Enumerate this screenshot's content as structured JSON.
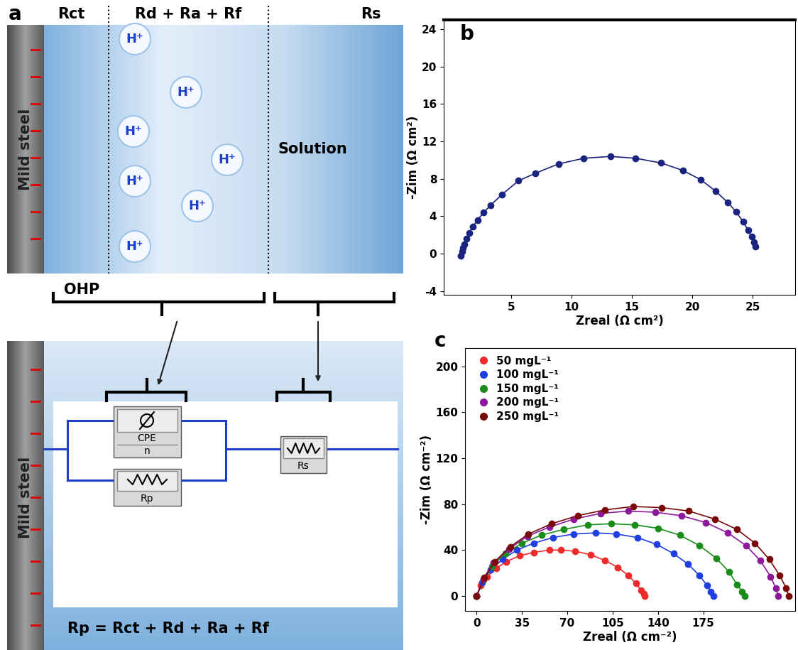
{
  "diagram": {
    "panel_label": "a",
    "header": {
      "left": "Rct",
      "middle": "Rd + Ra + Rf",
      "right": "Rs"
    },
    "electrode": "Mild steel",
    "ions": [
      "H⁺",
      "H⁺",
      "H⁺",
      "H⁺",
      "H⁺",
      "H⁺",
      "H⁺"
    ],
    "solution": "Solution",
    "layer": "OHP",
    "circuit": {
      "cpe": "CPE",
      "cpe_exponent": "n",
      "rp": "Rp",
      "rs": "Rs"
    },
    "equation": "Rp = Rct + Rd + Ra + Rf"
  },
  "chart_data": [
    {
      "type": "line",
      "panel_label": "b",
      "x_label": "Zreal (Ω cm²)",
      "y_label": "-Zim (Ω cm²)",
      "xlim": [
        -0.6,
        28.5
      ],
      "ylim": [
        -4.4,
        25
      ],
      "xticks": [
        5,
        10,
        15,
        20,
        25
      ],
      "yticks": [
        -4,
        0,
        4,
        8,
        12,
        16,
        20,
        24
      ],
      "series": [
        {
          "color": "#1a237e",
          "marker": "o",
          "line_style": "solid",
          "x": [
            0.8,
            0.9,
            1.0,
            1.1,
            1.3,
            1.5,
            1.8,
            2.2,
            2.7,
            3.3,
            4.2,
            5.6,
            7.0,
            8.9,
            11.0,
            13.2,
            15.3,
            17.4,
            19.2,
            20.7,
            21.9,
            22.9,
            23.6,
            24.2,
            24.6,
            24.9,
            25.1,
            25.2
          ],
          "values": [
            -0.2,
            0.2,
            0.6,
            1.0,
            1.6,
            2.2,
            2.9,
            3.6,
            4.4,
            5.2,
            6.3,
            7.8,
            8.6,
            9.6,
            10.2,
            10.4,
            10.2,
            9.7,
            8.9,
            7.9,
            6.7,
            5.5,
            4.5,
            3.4,
            2.5,
            1.8,
            1.2,
            0.8
          ]
        }
      ]
    },
    {
      "type": "line",
      "panel_label": "c",
      "x_label": "Zreal (Ω cm⁻²)",
      "y_label": "-Zim (Ω cm⁻²)",
      "xlim": [
        -9,
        246
      ],
      "ylim": [
        -13,
        216
      ],
      "xticks": [
        0,
        35,
        70,
        105,
        140,
        175
      ],
      "yticks": [
        0,
        40,
        80,
        120,
        160,
        200
      ],
      "legend": "upper left",
      "series": [
        {
          "name": "50 mgL⁻¹",
          "color": "#ee2b2b",
          "marker": "o",
          "line_style": "solid",
          "x": [
            0,
            3,
            8,
            15,
            23,
            33,
            44,
            56,
            65,
            76,
            88,
            99,
            109,
            117,
            123,
            127,
            129,
            130
          ],
          "values": [
            0,
            9,
            17,
            24,
            30,
            35,
            38,
            40,
            40,
            39,
            36,
            31,
            25,
            18,
            11,
            5,
            2,
            0
          ]
        },
        {
          "name": "100 mgL⁻¹",
          "color": "#1f3fe0",
          "marker": "o",
          "line_style": "solid",
          "x": [
            0,
            4,
            11,
            20,
            31,
            44,
            59,
            75,
            92,
            108,
            124,
            139,
            152,
            163,
            172,
            178,
            181,
            183
          ],
          "values": [
            0,
            12,
            23,
            32,
            40,
            46,
            51,
            54,
            55,
            54,
            51,
            45,
            37,
            28,
            18,
            9,
            4,
            0
          ]
        },
        {
          "name": "150 mgL⁻¹",
          "color": "#1a8c1a",
          "marker": "o",
          "line_style": "solid",
          "x": [
            0,
            5,
            12,
            22,
            35,
            50,
            67,
            86,
            104,
            122,
            140,
            157,
            172,
            185,
            195,
            201,
            205,
            207
          ],
          "values": [
            0,
            14,
            26,
            37,
            46,
            53,
            58,
            62,
            63,
            62,
            59,
            53,
            44,
            33,
            21,
            10,
            4,
            0
          ]
        },
        {
          "name": "200 mgL⁻¹",
          "color": "#8b1a9b",
          "marker": "o",
          "line_style": "solid",
          "x": [
            0,
            5,
            13,
            25,
            39,
            56,
            75,
            96,
            117,
            138,
            158,
            177,
            194,
            208,
            219,
            227,
            231,
            233
          ],
          "values": [
            0,
            15,
            29,
            41,
            52,
            60,
            67,
            72,
            74,
            73,
            70,
            64,
            55,
            44,
            31,
            17,
            7,
            0
          ]
        },
        {
          "name": "250 mgL⁻¹",
          "color": "#7a0a0a",
          "marker": "o",
          "line_style": "solid",
          "x": [
            0,
            6,
            14,
            26,
            40,
            58,
            78,
            99,
            121,
            143,
            164,
            184,
            201,
            215,
            226,
            234,
            239,
            241
          ],
          "values": [
            0,
            16,
            30,
            43,
            54,
            63,
            70,
            75,
            78,
            77,
            74,
            67,
            58,
            46,
            32,
            18,
            7,
            0
          ]
        }
      ]
    }
  ]
}
